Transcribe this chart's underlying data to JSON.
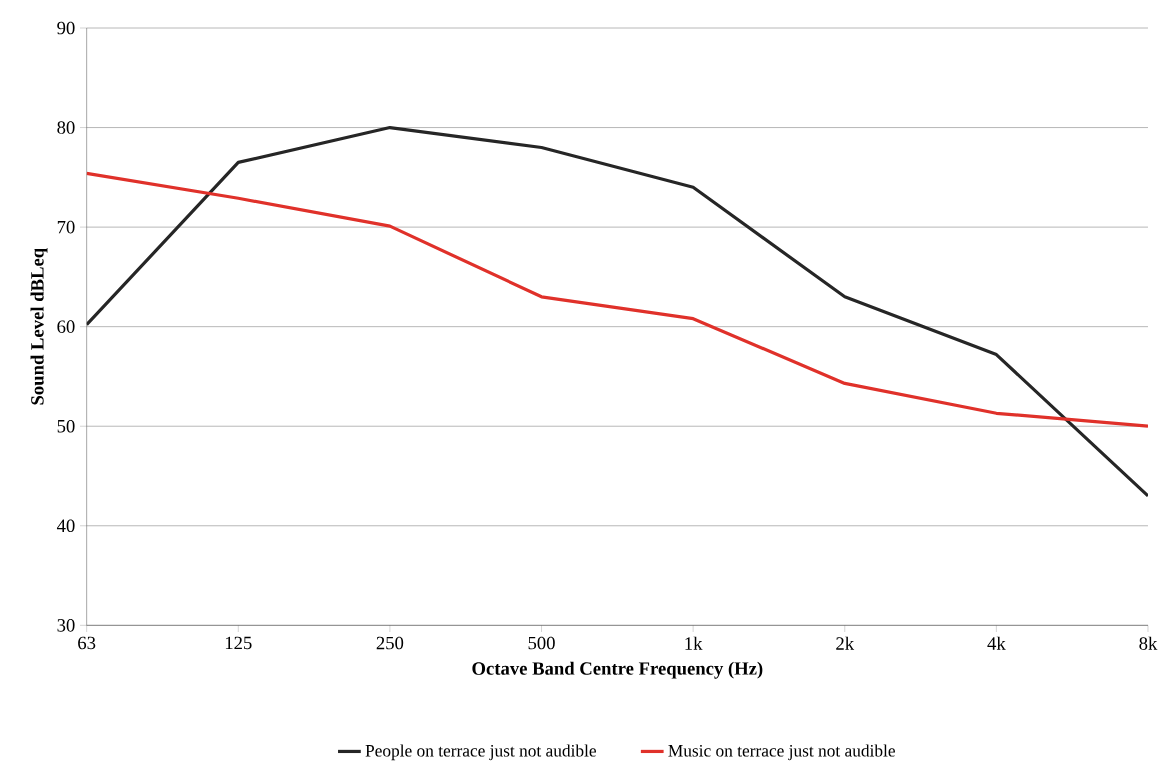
{
  "chart_data": {
    "type": "line",
    "xlabel": "Octave Band Centre Frequency (Hz)",
    "ylabel": "Sound Level dBLeq",
    "categories": [
      "63",
      "125",
      "250",
      "500",
      "1k",
      "2k",
      "4k",
      "8k"
    ],
    "series": [
      {
        "name": "People on terrace just not audible",
        "color": "#262626",
        "values": [
          60.2,
          76.5,
          80,
          78,
          74,
          63,
          57.2,
          43
        ]
      },
      {
        "name": "Music on terrace just not audible",
        "color": "#e0312a",
        "values": [
          75.4,
          72.9,
          70.1,
          63,
          60.8,
          54.3,
          51.3,
          50
        ]
      }
    ],
    "ylim": [
      30,
      90
    ],
    "yticks": [
      30,
      40,
      50,
      60,
      70,
      80,
      90
    ],
    "grid": "y",
    "legend": "bottom",
    "marker": "none",
    "line_style": "solid"
  }
}
